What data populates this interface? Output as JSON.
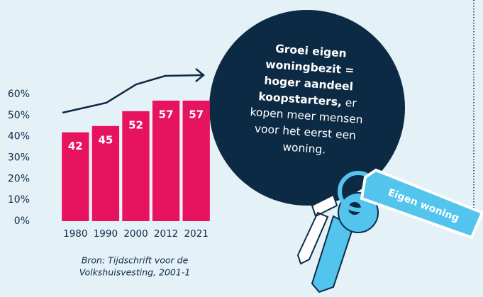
{
  "chart_data": {
    "type": "bar",
    "categories": [
      "1980",
      "1990",
      "2000",
      "2012",
      "2021"
    ],
    "values": [
      42,
      45,
      52,
      57,
      57
    ],
    "color": "#e8135e",
    "ylim": [
      0,
      60
    ],
    "yticks": [
      {
        "value": 0,
        "label": "0%"
      },
      {
        "value": 10,
        "label": "10%"
      },
      {
        "value": 20,
        "label": "20%"
      },
      {
        "value": 30,
        "label": "30%"
      },
      {
        "value": 40,
        "label": "40%"
      },
      {
        "value": 50,
        "label": "50%"
      },
      {
        "value": 60,
        "label": "60%"
      }
    ],
    "source": [
      "Bron: Tijdschrift voor de",
      "Volkshuisvesting, 2001-1"
    ],
    "bubble": {
      "bold_lines": [
        "Groei eigen",
        "woningbezit =",
        "hoger aandeel",
        "koopstarters,"
      ],
      "normal_lines": [
        "er",
        "kopen meer mensen",
        "voor het eerst een",
        "woning."
      ]
    },
    "tag": "Eigen woning"
  }
}
